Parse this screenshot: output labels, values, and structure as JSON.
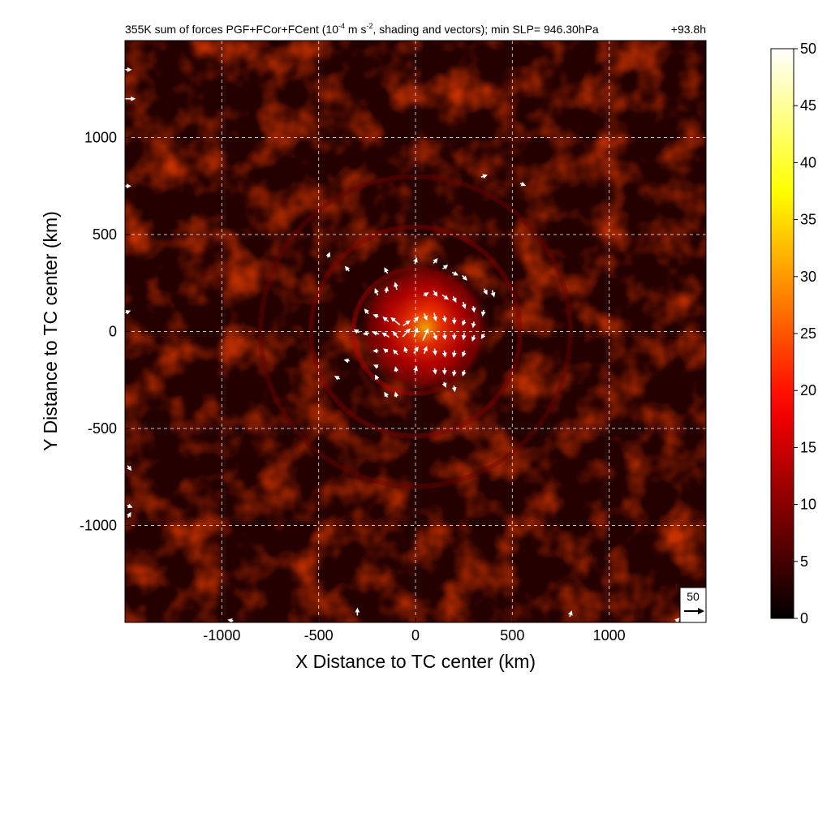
{
  "chart_data": {
    "type": "heatmap",
    "title": "355K sum of forces PGF+FCor+FCent (10",
    "title_sup1": "-4",
    "title_mid": " m s",
    "title_sup2": "-2",
    "title_end": ", shading and vectors); min SLP= 946.30hPa",
    "time_label": "+93.8h",
    "xlabel": "X Distance to TC center (km)",
    "ylabel": "Y Distance to TC center (km)",
    "xlim": [
      -1500,
      1500
    ],
    "ylim": [
      -1500,
      1500
    ],
    "grid": true,
    "x_ticks": [
      -1000,
      -500,
      0,
      500,
      1000
    ],
    "x_tick_labels": [
      "-1000",
      "-500",
      "0",
      "500",
      "1000"
    ],
    "y_ticks": [
      1000,
      500,
      0,
      -500,
      -1000
    ],
    "y_tick_labels": [
      "1000",
      "500",
      "0",
      "-500",
      "-1000"
    ],
    "colorbar": {
      "min": 0,
      "max": 50,
      "ticks": [
        0,
        5,
        10,
        15,
        20,
        25,
        30,
        35,
        40,
        45,
        50
      ],
      "tick_labels": [
        "0",
        "5",
        "10",
        "15",
        "20",
        "25",
        "30",
        "35",
        "40",
        "45",
        "50"
      ],
      "colormap": "hot"
    },
    "reference_vector": {
      "label": "50",
      "magnitude": 50
    },
    "field": {
      "background_level": 5,
      "core_center": [
        50,
        20
      ],
      "core_peak": 32,
      "rings": [
        {
          "radius": 320,
          "amplitude": 9
        },
        {
          "radius": 540,
          "amplitude": 5
        },
        {
          "radius": 800,
          "amplitude": 3
        }
      ]
    },
    "vectors": [
      {
        "x": -200,
        "y": 200,
        "u": -6,
        "v": 14
      },
      {
        "x": -150,
        "y": 210,
        "u": 2,
        "v": 12
      },
      {
        "x": -100,
        "y": 230,
        "u": -4,
        "v": 16
      },
      {
        "x": 50,
        "y": 190,
        "u": 10,
        "v": 6
      },
      {
        "x": 100,
        "y": 200,
        "u": 8,
        "v": -12
      },
      {
        "x": 150,
        "y": 180,
        "u": 14,
        "v": -10
      },
      {
        "x": 200,
        "y": 170,
        "u": 6,
        "v": -12
      },
      {
        "x": 250,
        "y": 140,
        "u": 4,
        "v": -14
      },
      {
        "x": 300,
        "y": 120,
        "u": 2,
        "v": -12
      },
      {
        "x": 350,
        "y": 100,
        "u": -2,
        "v": -12
      },
      {
        "x": -250,
        "y": 100,
        "u": -8,
        "v": 10
      },
      {
        "x": -200,
        "y": 80,
        "u": -10,
        "v": 4
      },
      {
        "x": -150,
        "y": 60,
        "u": -12,
        "v": 10
      },
      {
        "x": -100,
        "y": 50,
        "u": -22,
        "v": 18
      },
      {
        "x": -50,
        "y": 40,
        "u": 16,
        "v": 12
      },
      {
        "x": 0,
        "y": 60,
        "u": 10,
        "v": 10
      },
      {
        "x": 50,
        "y": 80,
        "u": 6,
        "v": -14
      },
      {
        "x": 100,
        "y": 80,
        "u": 4,
        "v": -18
      },
      {
        "x": 150,
        "y": 70,
        "u": 2,
        "v": -14
      },
      {
        "x": 200,
        "y": 60,
        "u": 0,
        "v": -14
      },
      {
        "x": 250,
        "y": 50,
        "u": -4,
        "v": -12
      },
      {
        "x": 300,
        "y": 40,
        "u": -2,
        "v": -12
      },
      {
        "x": -300,
        "y": 0,
        "u": -10,
        "v": 6
      },
      {
        "x": -250,
        "y": -10,
        "u": -12,
        "v": -2
      },
      {
        "x": -200,
        "y": -10,
        "u": -14,
        "v": 4
      },
      {
        "x": -150,
        "y": -20,
        "u": -16,
        "v": 10
      },
      {
        "x": -100,
        "y": -20,
        "u": -12,
        "v": 14
      },
      {
        "x": -50,
        "y": -10,
        "u": 18,
        "v": 20
      },
      {
        "x": 0,
        "y": -10,
        "u": 8,
        "v": 22
      },
      {
        "x": 50,
        "y": -20,
        "u": 14,
        "v": 30
      },
      {
        "x": 100,
        "y": -20,
        "u": 6,
        "v": -16
      },
      {
        "x": 150,
        "y": -20,
        "u": 2,
        "v": -14
      },
      {
        "x": 200,
        "y": -20,
        "u": 0,
        "v": -14
      },
      {
        "x": 250,
        "y": -20,
        "u": -2,
        "v": -14
      },
      {
        "x": 300,
        "y": -30,
        "u": -4,
        "v": -12
      },
      {
        "x": 350,
        "y": -20,
        "u": -6,
        "v": -10
      },
      {
        "x": -200,
        "y": -100,
        "u": -10,
        "v": 0
      },
      {
        "x": -150,
        "y": -100,
        "u": -8,
        "v": 6
      },
      {
        "x": -100,
        "y": -110,
        "u": -10,
        "v": 10
      },
      {
        "x": -50,
        "y": -100,
        "u": -4,
        "v": 12
      },
      {
        "x": 0,
        "y": -100,
        "u": 10,
        "v": 14
      },
      {
        "x": 50,
        "y": -100,
        "u": 6,
        "v": 16
      },
      {
        "x": 100,
        "y": -100,
        "u": 2,
        "v": -14
      },
      {
        "x": 150,
        "y": -110,
        "u": 2,
        "v": -14
      },
      {
        "x": 200,
        "y": -110,
        "u": -2,
        "v": -14
      },
      {
        "x": 250,
        "y": -110,
        "u": -4,
        "v": -12
      },
      {
        "x": -350,
        "y": -150,
        "u": -10,
        "v": 2
      },
      {
        "x": -200,
        "y": -180,
        "u": -8,
        "v": 4
      },
      {
        "x": -100,
        "y": -200,
        "u": -2,
        "v": 10
      },
      {
        "x": 0,
        "y": -200,
        "u": 4,
        "v": 12
      },
      {
        "x": 100,
        "y": -200,
        "u": 2,
        "v": -12
      },
      {
        "x": 150,
        "y": -200,
        "u": 0,
        "v": -14
      },
      {
        "x": 200,
        "y": -210,
        "u": -2,
        "v": -12
      },
      {
        "x": 250,
        "y": -210,
        "u": -4,
        "v": -12
      },
      {
        "x": -400,
        "y": -240,
        "u": -10,
        "v": 6
      },
      {
        "x": -200,
        "y": -240,
        "u": -4,
        "v": 8
      },
      {
        "x": 150,
        "y": -270,
        "u": 4,
        "v": -10
      },
      {
        "x": 200,
        "y": -290,
        "u": 2,
        "v": -12
      },
      {
        "x": -150,
        "y": -330,
        "u": -6,
        "v": 10
      },
      {
        "x": -100,
        "y": -330,
        "u": -2,
        "v": 10
      },
      {
        "x": -450,
        "y": 390,
        "u": 4,
        "v": 10
      },
      {
        "x": -150,
        "y": 310,
        "u": -6,
        "v": 12
      },
      {
        "x": 0,
        "y": 360,
        "u": 4,
        "v": 12
      },
      {
        "x": 100,
        "y": 360,
        "u": 8,
        "v": 10
      },
      {
        "x": 150,
        "y": 330,
        "u": 10,
        "v": 8
      },
      {
        "x": 200,
        "y": 300,
        "u": 12,
        "v": -6
      },
      {
        "x": 250,
        "y": 280,
        "u": 10,
        "v": -10
      },
      {
        "x": 360,
        "y": 210,
        "u": 6,
        "v": -12
      },
      {
        "x": 400,
        "y": 200,
        "u": 4,
        "v": -14
      },
      {
        "x": -350,
        "y": 320,
        "u": -8,
        "v": 10
      },
      {
        "x": 350,
        "y": 800,
        "u": 12,
        "v": 4
      },
      {
        "x": 550,
        "y": 760,
        "u": 10,
        "v": -4
      },
      {
        "x": -1490,
        "y": 1350,
        "u": 16,
        "v": 0
      },
      {
        "x": -1480,
        "y": 1200,
        "u": 26,
        "v": 0
      },
      {
        "x": -1490,
        "y": 750,
        "u": 12,
        "v": 0
      },
      {
        "x": -1490,
        "y": 100,
        "u": 10,
        "v": 4
      },
      {
        "x": -1480,
        "y": -700,
        "u": 8,
        "v": -10
      },
      {
        "x": -1480,
        "y": -900,
        "u": 10,
        "v": -4
      },
      {
        "x": -1480,
        "y": -950,
        "u": 6,
        "v": 10
      },
      {
        "x": -300,
        "y": -1450,
        "u": 0,
        "v": 16
      },
      {
        "x": 800,
        "y": -1460,
        "u": 4,
        "v": 12
      },
      {
        "x": -950,
        "y": -1490,
        "u": -10,
        "v": 2
      },
      {
        "x": 1350,
        "y": -1490,
        "u": 6,
        "v": 6
      }
    ]
  }
}
